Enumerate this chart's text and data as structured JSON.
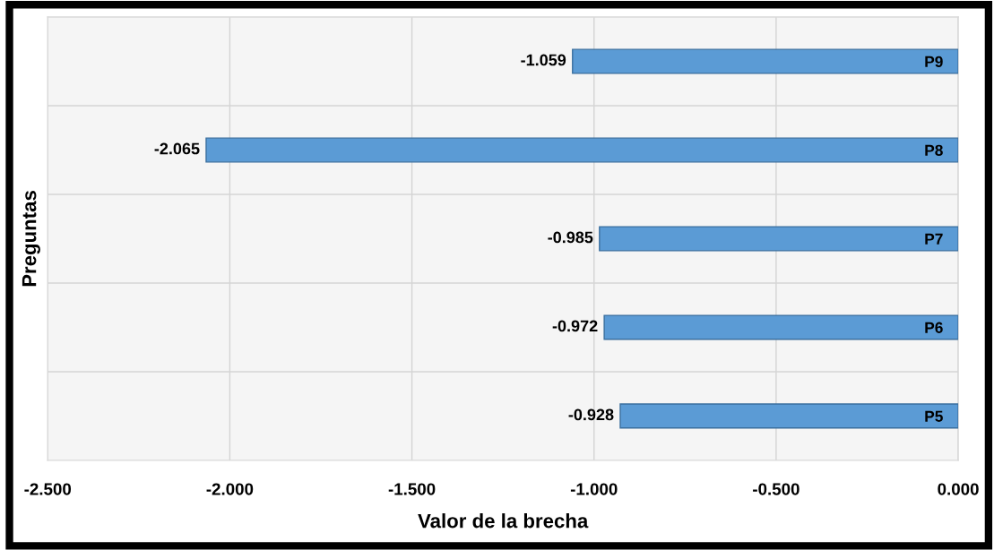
{
  "chart_data": {
    "type": "bar",
    "orientation": "horizontal",
    "categories": [
      "P9",
      "P8",
      "P7",
      "P6",
      "P5"
    ],
    "values": [
      -1.059,
      -2.065,
      -0.985,
      -0.972,
      -0.928
    ],
    "color": "#5b9bd5",
    "xlabel": "Valor de la brecha",
    "ylabel": "Preguntas",
    "xlim": [
      -2.5,
      0
    ],
    "xticks": [
      {
        "value": -2.5,
        "label": "-2.500"
      },
      {
        "value": -2.0,
        "label": "-2.000"
      },
      {
        "value": -1.5,
        "label": "-1.500"
      },
      {
        "value": -1.0,
        "label": "-1.000"
      },
      {
        "value": -0.5,
        "label": "-0.500"
      },
      {
        "value": 0,
        "label": "0.000"
      }
    ],
    "grid": true,
    "data_labels": true,
    "legend": false
  }
}
